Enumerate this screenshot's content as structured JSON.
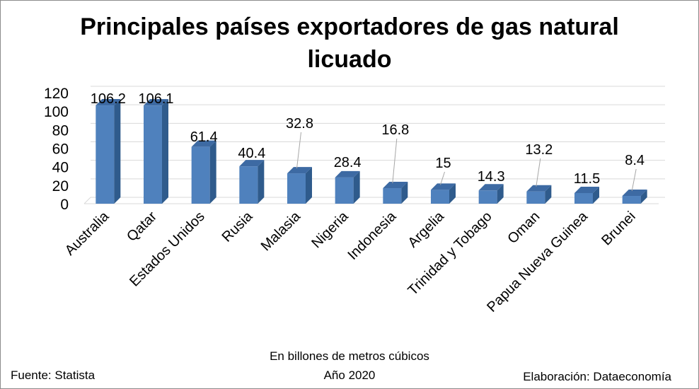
{
  "chart_data": {
    "type": "bar",
    "title": "Principales países exportadores de gas natural licuado",
    "categories": [
      "Australia",
      "Qatar",
      "Estados Unidos",
      "Rusia",
      "Malasia",
      "Nigeria",
      "Indonesia",
      "Argelia",
      "Trinidad y Tobago",
      "Oman",
      "Papua Nueva Guinea",
      "Brunei"
    ],
    "values": [
      106.2,
      106.1,
      61.4,
      40.4,
      32.8,
      28.4,
      16.8,
      15,
      14.3,
      13.2,
      11.5,
      8.4
    ],
    "value_labels": [
      "106.2",
      "106.1",
      "61.4",
      "40.4",
      "32.8",
      "28.4",
      "16.8",
      "15",
      "14.3",
      "13.2",
      "11.5",
      "8.4"
    ],
    "yticks": [
      0,
      20,
      40,
      60,
      80,
      100,
      120
    ],
    "ylim": [
      0,
      120
    ],
    "xlabel": "En billones de metros cúbicos",
    "subtitle": "Año 2020",
    "grid": true,
    "bar_color": "#4f81bd",
    "bar_side_color": "#2f5b8c",
    "bar_top_color": "#3d6aa3"
  },
  "footer": {
    "source": "Fuente: Statista",
    "credit": "Elaboración: Dataeconomía"
  }
}
